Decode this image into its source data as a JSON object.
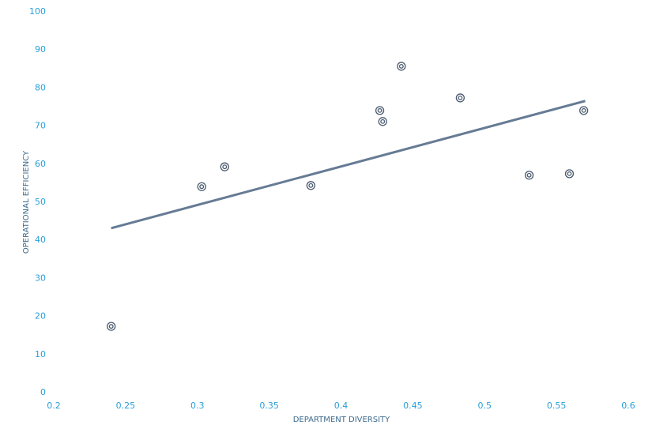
{
  "chart_data": {
    "type": "scatter",
    "x_label": "DEPARTMENT DIVERSITY",
    "y_label": "OPERATIONAL EFFICIENCY",
    "series": [
      {
        "color": "#4a5a6e",
        "x": [
          0.24,
          0.303,
          0.319,
          0.379,
          0.427,
          0.429,
          0.442,
          0.483,
          0.531,
          0.559,
          0.569
        ],
        "values": [
          17.4,
          54.1,
          59.3,
          54.4,
          74.1,
          71.2,
          85.7,
          77.4,
          57.1,
          57.5,
          74.1
        ]
      }
    ],
    "trendline": {
      "color": "#667b94",
      "x": [
        0.24,
        0.57
      ],
      "values": [
        43.2,
        76.6
      ]
    },
    "xlim": [
      0.2,
      0.6
    ],
    "xticks": [
      0.2,
      0.25,
      0.3,
      0.35,
      0.4,
      0.45,
      0.5,
      0.55,
      0.6
    ],
    "ylim": [
      0,
      100
    ],
    "yticks": [
      0,
      10,
      20,
      30,
      40,
      50,
      60,
      70,
      80,
      90,
      100
    ],
    "grid": false
  }
}
